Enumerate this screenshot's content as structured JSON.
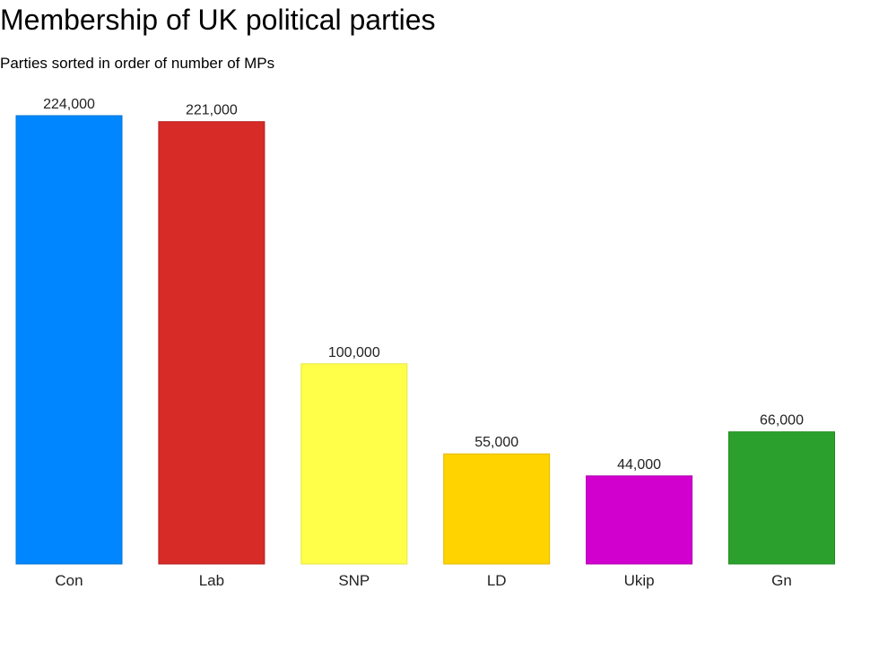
{
  "chart_data": {
    "type": "bar",
    "title": "Membership of UK political parties",
    "subtitle": "Parties sorted in order of number of MPs",
    "xlabel": "",
    "ylabel": "",
    "categories": [
      "Con",
      "Lab",
      "SNP",
      "LD",
      "Ukip",
      "Gn"
    ],
    "values": [
      224000,
      221000,
      100000,
      55000,
      44000,
      66000
    ],
    "value_labels": [
      "224,000",
      "221,000",
      "100,000",
      "55,000",
      "44,000",
      "66,000"
    ],
    "colors": [
      "#0087ff",
      "#d72b28",
      "#ffff49",
      "#fed300",
      "#d100cf",
      "#2ca02c"
    ],
    "border_colors": [
      "#0a73cf",
      "#b51e1c",
      "#e6e63c",
      "#e6b800",
      "#b000ae",
      "#1f8a1f"
    ],
    "ylim": [
      0,
      224000
    ],
    "grid": false,
    "legend": "none"
  }
}
